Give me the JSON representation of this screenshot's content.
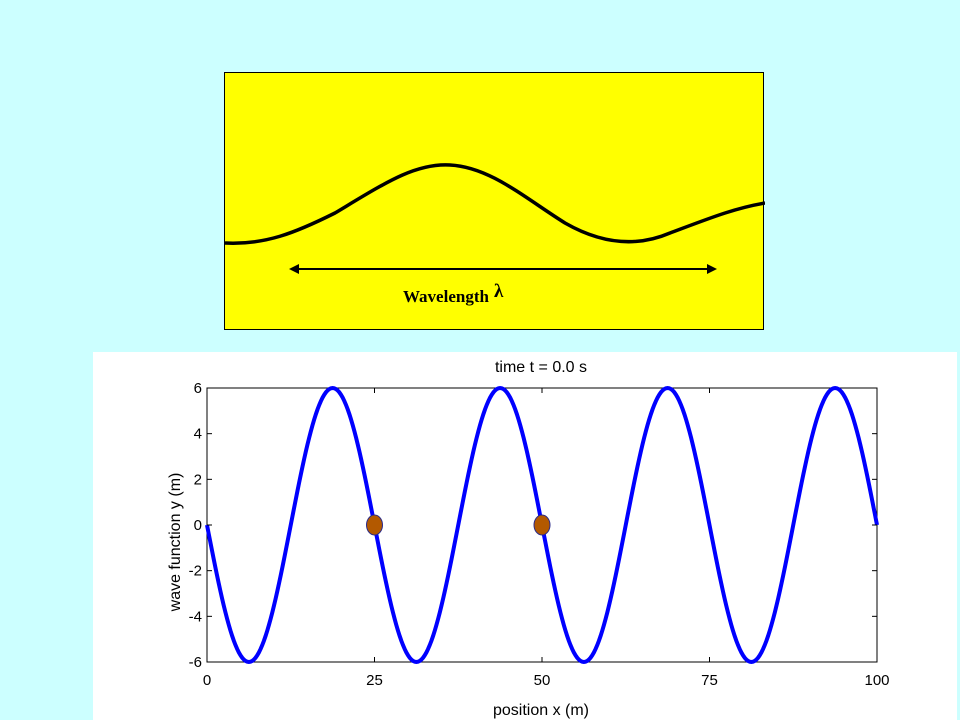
{
  "diagram": {
    "label": "Wavelength",
    "symbol": "λ",
    "colors": {
      "background": "#ffff00",
      "wave": "#000000",
      "arrow": "#000000"
    }
  },
  "chart_data": {
    "type": "line",
    "title": "time t =  0.0 s",
    "xlabel": "position  x (m)",
    "ylabel": "wave function  y (m)",
    "xlim": [
      0,
      100
    ],
    "ylim": [
      -6,
      6
    ],
    "xticks": [
      0,
      25,
      50,
      75,
      100
    ],
    "yticks": [
      -6,
      -4,
      -2,
      0,
      2,
      4,
      6
    ],
    "grid": false,
    "series": [
      {
        "color": "#0000ff",
        "function": "y = -6 sin(2πx/25)",
        "x": [
          0,
          6.25,
          12.5,
          18.75,
          25,
          31.25,
          37.5,
          43.75,
          50,
          56.25,
          62.5,
          68.75,
          75,
          81.25,
          87.5,
          93.75,
          100
        ],
        "y": [
          0,
          -6,
          0,
          6,
          0,
          -6,
          0,
          6,
          0,
          -6,
          0,
          6,
          0,
          -6,
          0,
          6,
          0
        ]
      }
    ],
    "markers": [
      {
        "x": 25,
        "y": 0,
        "color": "#b35900"
      },
      {
        "x": 50,
        "y": 0,
        "color": "#b35900"
      }
    ]
  }
}
